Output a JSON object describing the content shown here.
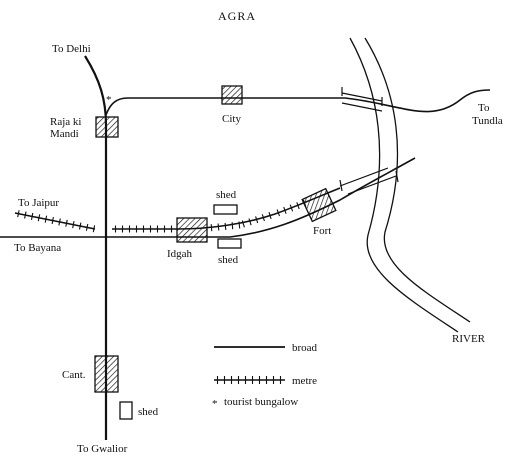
{
  "title": "AGRA",
  "colors": {
    "ink": "#111111",
    "paper": "#ffffff"
  },
  "destinations": {
    "delhi": "To Delhi",
    "tundla_1": "To",
    "tundla_2": "Tundla",
    "jaipur": "To Jaipur",
    "bayana": "To Bayana",
    "gwalior": "To Gwalior"
  },
  "stations": {
    "raja_ki_mandi_1": "Raja ki",
    "raja_ki_mandi_2": "Mandi",
    "city": "City",
    "idgah": "Idgah",
    "fort": "Fort",
    "cant": "Cant."
  },
  "sheds": {
    "shed_upper": "shed",
    "shed_lower": "shed",
    "shed_cant": "shed"
  },
  "river": "RIVER",
  "legend": {
    "broad": "broad",
    "metre": "metre",
    "tourist_symbol": "*",
    "tourist": "tourist bungalow"
  }
}
